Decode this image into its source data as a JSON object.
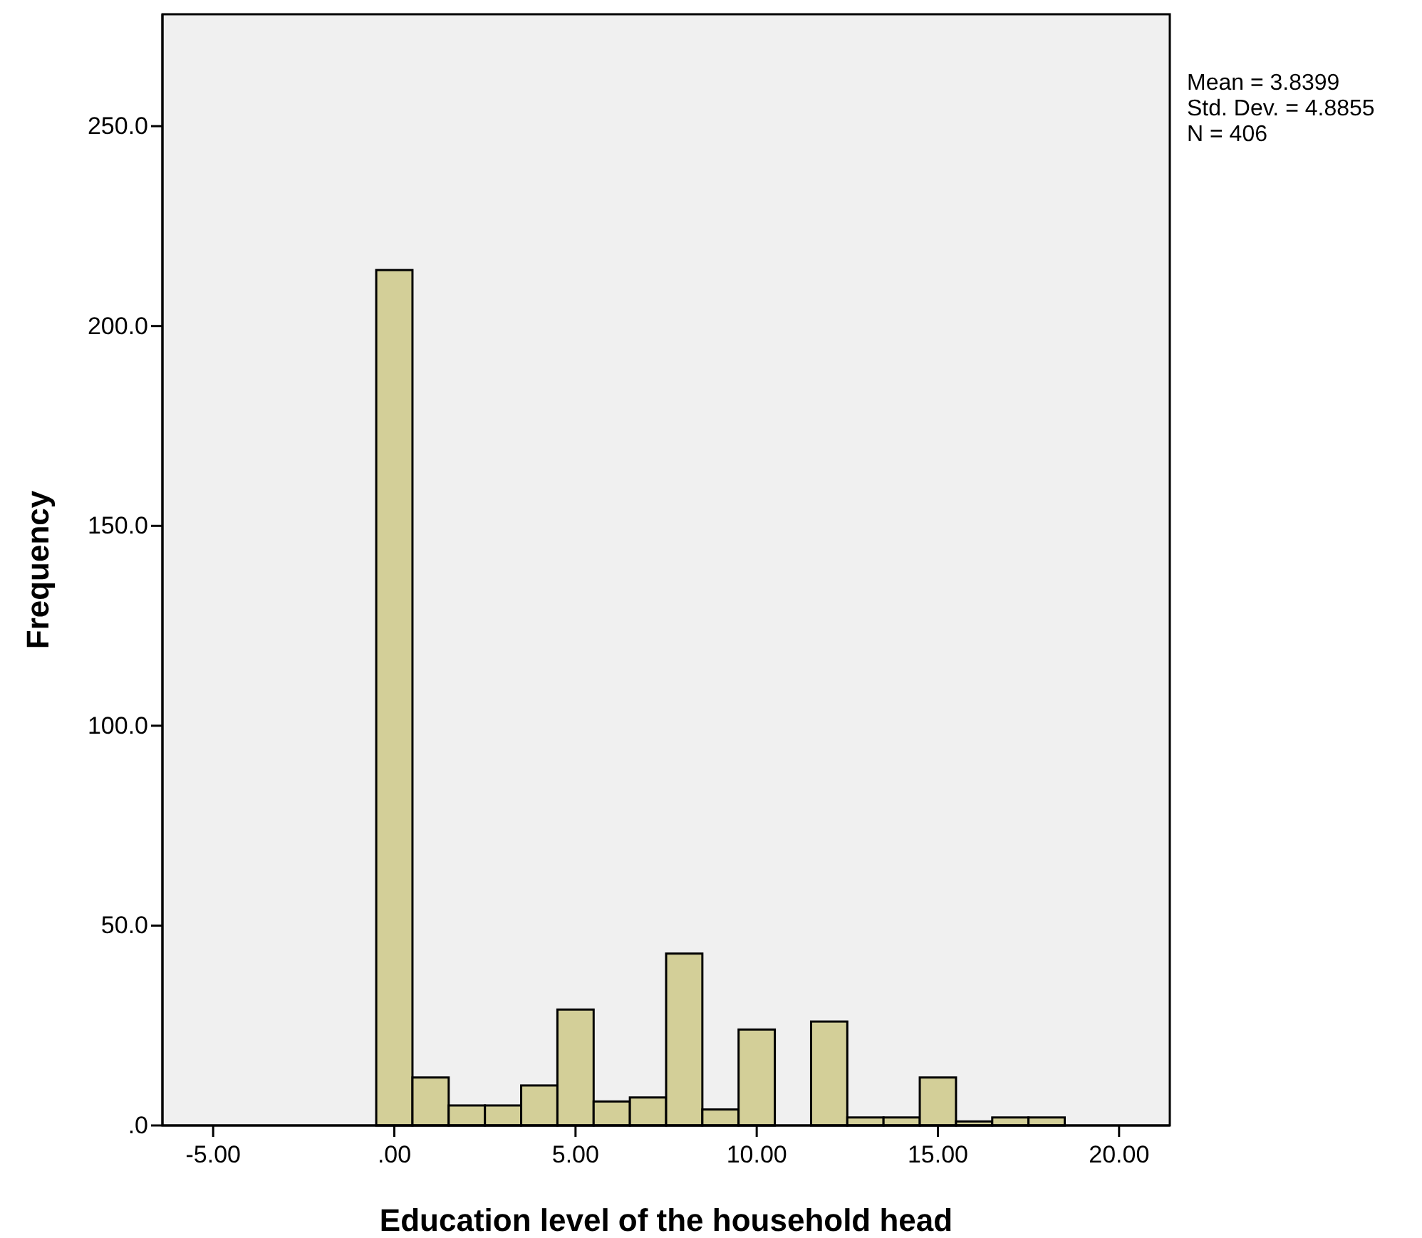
{
  "chart_data": {
    "type": "histogram",
    "xlabel": "Education level of the household head",
    "ylabel": "Frequency",
    "bins": [
      -0.5,
      0.5,
      1.5,
      2.5,
      3.5,
      4.5,
      5.5,
      6.5,
      7.5,
      8.5,
      9.5,
      10.5,
      11.5,
      12.5,
      13.5,
      14.5,
      15.5,
      16.5,
      17.5,
      18.5
    ],
    "values": [
      214,
      12,
      5,
      5,
      10,
      29,
      6,
      7,
      43,
      4,
      24,
      0,
      26,
      2,
      2,
      12,
      1,
      2,
      2
    ],
    "color": "#d3cf98",
    "xlim": [
      -6.4,
      21.4
    ],
    "xticks": [
      {
        "value": -5,
        "label": "-5.00"
      },
      {
        "value": 0,
        "label": ".00"
      },
      {
        "value": 5,
        "label": "5.00"
      },
      {
        "value": 10,
        "label": "10.00"
      },
      {
        "value": 15,
        "label": "15.00"
      },
      {
        "value": 20,
        "label": "20.00"
      }
    ],
    "ylim": [
      0,
      278
    ],
    "yticks": [
      {
        "value": 0,
        "label": ".0"
      },
      {
        "value": 50,
        "label": "50.0"
      },
      {
        "value": 100,
        "label": "100.0"
      },
      {
        "value": 150,
        "label": "150.0"
      },
      {
        "value": 200,
        "label": "200.0"
      },
      {
        "value": 250,
        "label": "250.0"
      }
    ],
    "annotations": [
      "Mean = 3.8399",
      "Std. Dev. = 4.8855",
      "N = 406"
    ],
    "grid": false
  }
}
